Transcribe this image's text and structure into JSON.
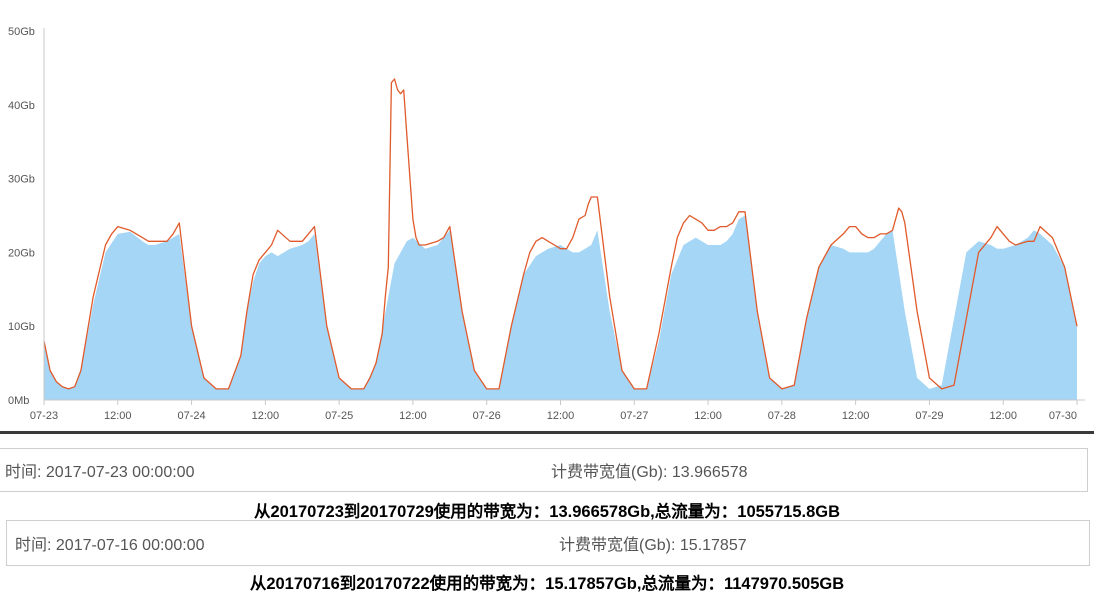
{
  "chart_data": {
    "type": "area",
    "y_tick_labels": [
      "0Mb",
      "10Gb",
      "20Gb",
      "30Gb",
      "40Gb",
      "50Gb"
    ],
    "ylim": [
      0,
      50
    ],
    "y_unit": "Gb",
    "xlim": [
      "07-23 00:00",
      "07-30 00:00"
    ],
    "x_tick_labels": [
      "07-23",
      "12:00",
      "07-24",
      "12:00",
      "07-25",
      "12:00",
      "07-26",
      "12:00",
      "07-27",
      "12:00",
      "07-28",
      "12:00",
      "07-29",
      "12:00",
      "07-30"
    ],
    "x_ticks_hours": [
      0,
      12,
      24,
      36,
      48,
      60,
      72,
      84,
      96,
      108,
      120,
      132,
      144,
      156,
      168
    ],
    "grid": false,
    "legend": "none",
    "series": [
      {
        "style": "area",
        "color": "#a5d6f5",
        "x_hours": [
          0,
          1,
          2,
          3,
          4,
          5,
          6,
          8,
          10,
          12,
          14,
          16,
          17,
          18,
          20,
          22,
          24,
          26,
          28,
          30,
          32,
          33,
          34,
          35,
          36,
          37,
          38,
          40,
          42,
          43,
          44,
          46,
          48,
          50,
          52,
          54,
          56,
          57,
          58,
          59,
          60,
          62,
          64,
          65,
          66,
          68,
          70,
          72,
          74,
          76,
          78,
          80,
          81,
          82,
          84,
          85,
          86,
          87,
          88,
          89,
          90,
          92,
          94,
          96,
          98,
          100,
          102,
          104,
          105,
          106,
          108,
          110,
          111,
          112,
          113,
          114,
          116,
          118,
          120,
          122,
          124,
          126,
          128,
          130,
          131,
          132,
          134,
          135,
          136,
          137,
          138,
          140,
          142,
          144,
          146,
          148,
          150,
          152,
          154,
          155,
          156,
          158,
          160,
          161,
          162,
          164,
          166,
          168
        ],
        "values": [
          8,
          4,
          2.5,
          1.8,
          1.5,
          1.8,
          4,
          13,
          20,
          22.5,
          22.8,
          21.5,
          21,
          21,
          21.5,
          22.5,
          10,
          3,
          1.5,
          1.5,
          6,
          12,
          16,
          18.5,
          19.5,
          20,
          19.5,
          20.5,
          21,
          21.5,
          22.5,
          10,
          3,
          1.5,
          1.5,
          5,
          14,
          18.5,
          20,
          21.5,
          22,
          20.5,
          21,
          22,
          23,
          12,
          4,
          1.5,
          1.5,
          10,
          17,
          19.5,
          20,
          20.5,
          21,
          20.5,
          20,
          20,
          20.5,
          21,
          23,
          12,
          4,
          1.5,
          1.5,
          8,
          17,
          21,
          21.5,
          22,
          21,
          21,
          21.5,
          22.5,
          24.5,
          25,
          12,
          3,
          1.5,
          2,
          11,
          18,
          21,
          20.5,
          20,
          20,
          20,
          20.5,
          21.5,
          22.5,
          23,
          12,
          3,
          1.5,
          2,
          11,
          20,
          21.5,
          21,
          20.5,
          20.5,
          21,
          22,
          23,
          22.5,
          21,
          18,
          10
        ]
      },
      {
        "style": "line",
        "color": "#e05a2b",
        "x_hours": [
          0,
          1,
          2,
          3,
          4,
          5,
          6,
          8,
          10,
          11,
          12,
          14,
          16,
          17,
          18,
          20,
          21,
          22,
          24,
          26,
          28,
          30,
          32,
          33,
          34,
          35,
          36,
          37,
          38,
          40,
          42,
          43,
          44,
          46,
          48,
          50,
          52,
          53,
          54,
          55,
          55.5,
          56,
          56.5,
          57,
          57.5,
          58,
          58.5,
          59,
          60,
          60.5,
          61,
          62,
          64,
          65,
          66,
          68,
          70,
          72,
          74,
          76,
          78,
          79,
          80,
          81,
          82,
          83,
          84,
          85,
          86,
          87,
          88,
          88.5,
          89,
          89.5,
          90,
          92,
          94,
          96,
          98,
          100,
          102,
          103,
          104,
          105,
          106,
          107,
          108,
          109,
          110,
          111,
          112,
          113,
          114,
          116,
          118,
          120,
          122,
          124,
          126,
          128,
          130,
          131,
          132,
          133,
          134,
          135,
          136,
          137,
          138,
          139,
          139.5,
          140,
          142,
          144,
          146,
          148,
          150,
          152,
          154,
          155,
          156,
          157,
          158,
          160,
          161,
          162,
          164,
          166,
          168
        ],
        "values": [
          8,
          4,
          2.5,
          1.8,
          1.5,
          1.8,
          4,
          14,
          21,
          22.5,
          23.5,
          23,
          22,
          21.5,
          21.5,
          21.5,
          22.5,
          24,
          10,
          3,
          1.5,
          1.5,
          6,
          12,
          17,
          19,
          20,
          21,
          23,
          21.5,
          21.5,
          22.5,
          23.5,
          10,
          3,
          1.5,
          1.5,
          3,
          5,
          9,
          14,
          18,
          43,
          43.5,
          42,
          41.5,
          42,
          36,
          24.5,
          22,
          21,
          21,
          21.5,
          22,
          23.5,
          12,
          4,
          1.5,
          1.5,
          10,
          17,
          20,
          21.5,
          22,
          21.5,
          21,
          20.5,
          20.5,
          22,
          24.5,
          25,
          26.5,
          27.5,
          27.5,
          27.5,
          14,
          4,
          1.5,
          1.5,
          9,
          18,
          22,
          24,
          25,
          24.5,
          24,
          23,
          23,
          23.5,
          23.5,
          24,
          25.5,
          25.5,
          12,
          3,
          1.5,
          2,
          11,
          18,
          21,
          22.5,
          23.5,
          23.5,
          22.5,
          22,
          22,
          22.5,
          22.5,
          23,
          26,
          25.5,
          24,
          12,
          3,
          1.5,
          2,
          11,
          20,
          22,
          23.5,
          22.5,
          21.5,
          21,
          21.5,
          21.5,
          23.5,
          22,
          18,
          10
        ]
      }
    ]
  },
  "period1": {
    "time_label": "时间: 2017-07-23 00:00:00",
    "billing_label": "计费带宽值(Gb): 13.966578",
    "summary": "从20170723到20170729使用的带宽为：13.966578Gb,总流量为：1055715.8GB"
  },
  "period2": {
    "time_label": "时间: 2017-07-16 00:00:00",
    "billing_label": "计费带宽值(Gb): 15.17857",
    "summary": "从20170716到20170722使用的带宽为：15.17857Gb,总流量为：1147970.505GB"
  }
}
